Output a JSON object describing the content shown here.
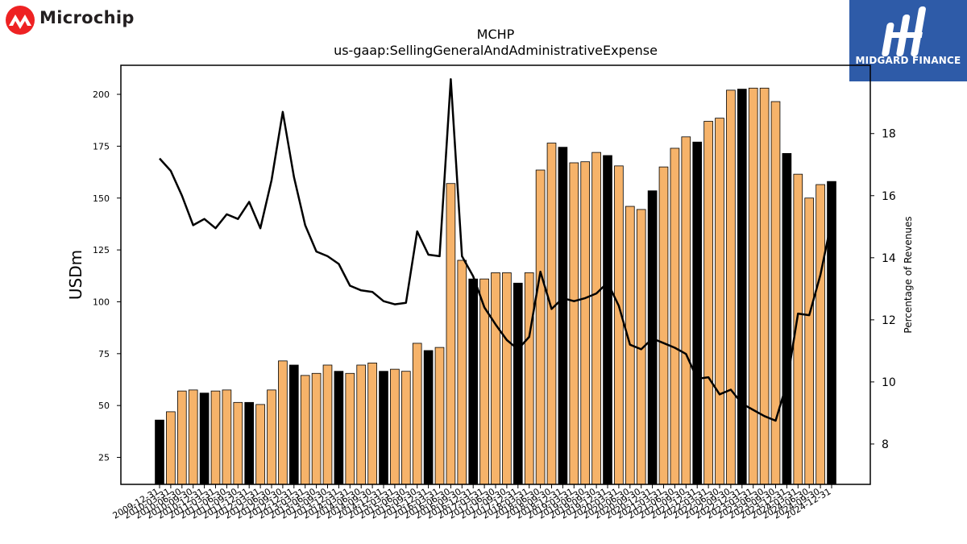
{
  "logos": {
    "left_brand": "Microchip",
    "right_brand": "MIDGARD FINANCE"
  },
  "chart_data": {
    "type": "bar",
    "title": "MCHP",
    "subtitle": "us-gaap:SellingGeneralAndAdministrativeExpense",
    "ylabel": "USDm",
    "y2label": "Percentage of Revenues",
    "ylim": [
      12,
      214
    ],
    "y2lim": [
      6.7,
      20.2
    ],
    "yticks": [
      25,
      50,
      75,
      100,
      125,
      150,
      175,
      200
    ],
    "y2ticks": [
      8,
      10,
      12,
      14,
      16,
      18
    ],
    "categories": [
      "2009-12-31",
      "2010-03-31",
      "2010-06-30",
      "2010-09-30",
      "2010-12-31",
      "2011-03-31",
      "2011-06-30",
      "2011-09-30",
      "2011-12-31",
      "2012-03-31",
      "2012-06-30",
      "2012-09-30",
      "2012-12-31",
      "2013-03-31",
      "2013-06-30",
      "2013-09-30",
      "2013-12-31",
      "2014-03-31",
      "2014-06-30",
      "2014-09-30",
      "2014-12-31",
      "2015-03-31",
      "2015-06-30",
      "2015-09-30",
      "2015-12-31",
      "2016-03-31",
      "2016-06-30",
      "2016-09-30",
      "2016-12-31",
      "2017-03-31",
      "2017-06-30",
      "2017-09-30",
      "2017-12-31",
      "2018-03-31",
      "2018-06-30",
      "2018-09-30",
      "2018-12-31",
      "2019-03-31",
      "2019-06-30",
      "2019-09-30",
      "2019-12-31",
      "2020-03-31",
      "2020-06-30",
      "2020-09-30",
      "2020-12-31",
      "2021-03-31",
      "2021-06-30",
      "2021-09-30",
      "2021-12-31",
      "2022-03-31",
      "2022-06-30",
      "2022-09-30",
      "2022-12-31",
      "2023-03-31",
      "2023-06-30",
      "2023-09-30",
      "2023-12-31",
      "2024-03-31",
      "2024-06-30",
      "2024-09-30",
      "2024-12-31"
    ],
    "series": [
      {
        "values": [
          43,
          47,
          57,
          57.5,
          56,
          57,
          57.5,
          51.5,
          51.5,
          50.5,
          57.5,
          71.5,
          69.5,
          64.5,
          65.5,
          69.5,
          66.5,
          65.5,
          69.5,
          70.5,
          66.5,
          67.5,
          66.5,
          80,
          76.5,
          78,
          157,
          120,
          111,
          111,
          114,
          114,
          109,
          114,
          163.5,
          176.5,
          174.5,
          167,
          167.5,
          172,
          170.5,
          165.5,
          146,
          144.5,
          153.5,
          165,
          174,
          179.5,
          177,
          187,
          188.5,
          202,
          202.5,
          203,
          203,
          196.5,
          171.5,
          161.5,
          150,
          156.5,
          158
        ],
        "highlight": [
          true,
          false,
          false,
          false,
          true,
          false,
          false,
          false,
          true,
          false,
          false,
          false,
          true,
          false,
          false,
          false,
          true,
          false,
          false,
          false,
          true,
          false,
          false,
          false,
          true,
          false,
          false,
          false,
          true,
          false,
          false,
          false,
          true,
          false,
          false,
          false,
          true,
          false,
          false,
          false,
          true,
          false,
          false,
          false,
          true,
          false,
          false,
          false,
          true,
          false,
          false,
          false,
          true,
          false,
          false,
          false,
          true,
          false,
          false,
          false,
          true
        ]
      },
      {
        "axis": "right",
        "values": [
          17.2,
          16.8,
          16.0,
          15.05,
          15.25,
          14.95,
          15.4,
          15.25,
          15.8,
          14.95,
          16.5,
          18.7,
          16.6,
          15.05,
          14.2,
          14.05,
          13.8,
          13.1,
          12.95,
          12.9,
          12.6,
          12.5,
          12.55,
          14.85,
          14.1,
          14.05,
          19.75,
          14.05,
          13.4,
          12.4,
          11.85,
          11.35,
          11.05,
          11.45,
          13.55,
          12.35,
          12.7,
          12.6,
          12.7,
          12.85,
          13.2,
          12.45,
          11.2,
          11.05,
          11.4,
          11.25,
          11.1,
          10.9,
          10.1,
          10.15,
          9.6,
          9.75,
          9.3,
          9.1,
          8.9,
          8.75,
          9.95,
          12.2,
          12.15,
          13.45,
          15.2
        ]
      }
    ],
    "bar_color": "#f6b36a",
    "highlight_color": "#000000",
    "line_color": "#000000",
    "grid": false
  }
}
